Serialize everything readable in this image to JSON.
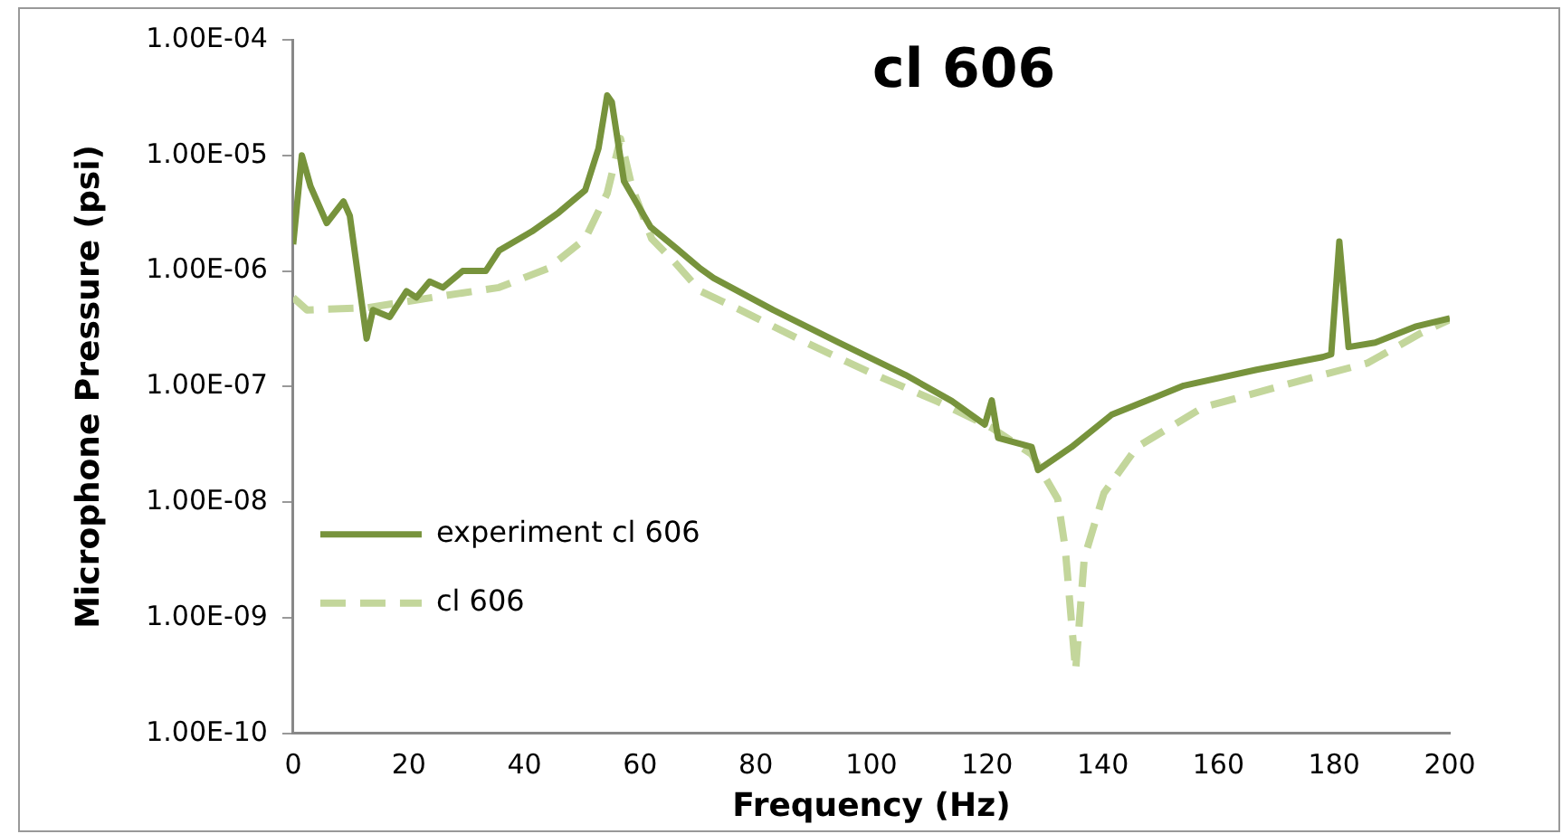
{
  "chart_data": {
    "type": "line",
    "title": "cl 606",
    "xlabel": "Frequency (Hz)",
    "ylabel": "Microphone Pressure (psi)",
    "log": "y",
    "grid": false,
    "legend": "bottom left",
    "marker": "none",
    "xlim": [
      0,
      200
    ],
    "xticks": [
      0,
      20,
      40,
      60,
      80,
      100,
      120,
      140,
      160,
      180,
      200
    ],
    "ylim": [
      1e-10,
      0.0001
    ],
    "yticks": [
      {
        "value": 1e-10,
        "label": "1.00E-10"
      },
      {
        "value": 1e-09,
        "label": "1.00E-09"
      },
      {
        "value": 1e-08,
        "label": "1.00E-08"
      },
      {
        "value": 1e-07,
        "label": "1.00E-07"
      },
      {
        "value": 1e-06,
        "label": "1.00E-06"
      },
      {
        "value": 1e-05,
        "label": "1.00E-05"
      },
      {
        "value": 0.0001,
        "label": "1.00E-04"
      }
    ],
    "series": [
      {
        "name": "experiment cl 606",
        "color": "#77933c",
        "line_style": "solid",
        "x": [
          0,
          1.5,
          3,
          5.8,
          8.7,
          9.8,
          12.7,
          13.8,
          16.7,
          19.6,
          21.3,
          23.6,
          25.9,
          29.3,
          33.3,
          35.6,
          41.3,
          45.9,
          50.5,
          52.8,
          54.3,
          55.1,
          57.2,
          61.8,
          66.4,
          70.4,
          72.7,
          83,
          94.4,
          105.9,
          113.9,
          119.6,
          120.8,
          121.9,
          127.7,
          128.8,
          134.6,
          141.5,
          154,
          166.6,
          178,
          179.5,
          180.9,
          182.5,
          187.1,
          194,
          200
        ],
        "values": [
          1.7e-06,
          1e-05,
          5.4e-06,
          2.6e-06,
          4e-06,
          3e-06,
          2.6e-07,
          4.6e-07,
          4e-07,
          6.7e-07,
          5.9e-07,
          8.1e-07,
          7.2e-07,
          1e-06,
          1e-06,
          1.5e-06,
          2.2e-06,
          3.2e-06,
          5e-06,
          1.15e-05,
          3.3e-05,
          2.9e-05,
          6e-06,
          2.4e-06,
          1.55e-06,
          1.05e-06,
          8.7e-07,
          4.6e-07,
          2.4e-07,
          1.26e-07,
          7.5e-08,
          4.7e-08,
          7.6e-08,
          3.6e-08,
          3e-08,
          1.9e-08,
          3e-08,
          5.7e-08,
          1.02e-07,
          1.4e-07,
          1.8e-07,
          1.9e-07,
          1.8e-06,
          2.2e-07,
          2.4e-07,
          3.3e-07,
          3.9e-07
        ]
      },
      {
        "name": "cl 606",
        "color": "#c3d69b",
        "line_style": "dashed",
        "x": [
          0,
          2.4,
          12.7,
          24.1,
          35.6,
          44,
          50.5,
          54.3,
          56.6,
          58.6,
          62,
          65.9,
          70.4,
          77.3,
          88.7,
          100.1,
          111.5,
          120.8,
          127.7,
          132.2,
          133.5,
          135.3,
          136.8,
          140.2,
          145.9,
          157.3,
          171,
          185.8,
          195,
          200
        ],
        "values": [
          5.9e-07,
          4.6e-07,
          4.8e-07,
          5.9e-07,
          7.2e-07,
          1.05e-06,
          1.9e-06,
          4.7e-06,
          1.4e-05,
          5.3e-06,
          1.9e-06,
          1.2e-06,
          6.7e-07,
          4.6e-07,
          2.4e-07,
          1.3e-07,
          7.4e-08,
          4.4e-08,
          2.6e-08,
          1.07e-08,
          4e-09,
          3.5e-10,
          3.3e-09,
          1.2e-08,
          3e-08,
          6.6e-08,
          1.02e-07,
          1.6e-07,
          2.9e-07,
          3.8e-07
        ]
      }
    ]
  }
}
